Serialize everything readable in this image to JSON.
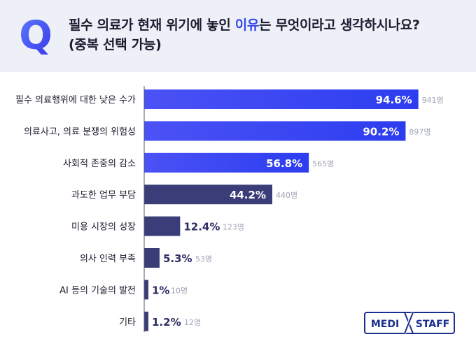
{
  "question": {
    "part1": "필수 의료가 현재 위기에 놓인 ",
    "highlight": "이유",
    "part2": "는 무엇이라고 생각하시나요?",
    "line2": "(중복 선택 가능)"
  },
  "q_letter": "Q",
  "logo": {
    "left": "MEDI",
    "right": "STAFF"
  },
  "colors": {
    "accent": "#3548f0",
    "bar_gradient_start": "#4b52f5",
    "bar_gradient_end": "#2c3df0",
    "bar_dark": "#3b3d78",
    "count_text": "#9fa3b8",
    "header_bg": "#eef0f8"
  },
  "chart_data": {
    "type": "bar",
    "orientation": "horizontal",
    "categories": [
      "필수 의료행위에 대한 낮은 수가",
      "의료사고, 의료 분쟁의 위험성",
      "사회적 존중의 감소",
      "과도한 업무 부담",
      "미용 시장의 성장",
      "의사 인력 부족",
      "AI 등의 기술의 발전",
      "기타"
    ],
    "values": [
      94.6,
      90.2,
      56.8,
      44.2,
      12.4,
      5.3,
      1,
      1.2
    ],
    "value_labels": [
      "94.6%",
      "90.2%",
      "56.8%",
      "44.2%",
      "12.4%",
      "5.3%",
      "1%",
      "1.2%"
    ],
    "counts": [
      "941명",
      "897명",
      "565명",
      "440명",
      "123명",
      "53명",
      "10명",
      "12명"
    ],
    "highlighted": [
      true,
      true,
      true,
      false,
      false,
      false,
      false,
      false
    ],
    "xlim": [
      0,
      100
    ]
  }
}
